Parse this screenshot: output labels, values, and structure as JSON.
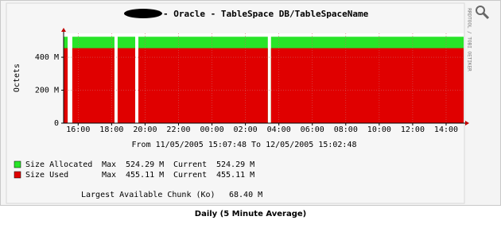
{
  "chart_data": {
    "type": "area",
    "title": "- Oracle - TableSpace DB/TableSpaceName",
    "subtitle": "From 11/05/2005 15:07:48 To 12/05/2005 15:02:48",
    "ylabel": "Octets",
    "watermark": "RRDTOOL / TOBI OETIKER",
    "caption": "Daily (5 Minute Average)",
    "x": [
      15.13,
      15.37,
      15.5,
      15.65,
      18.17,
      18.25,
      18.36,
      19.41,
      19.5,
      19.6,
      27.34,
      27.45,
      27.53,
      39.047
    ],
    "series": [
      {
        "name": "Size Allocated",
        "color": "#28e428",
        "values": [
          524290000,
          524290000,
          null,
          524290000,
          524290000,
          null,
          524290000,
          524290000,
          null,
          524290000,
          524290000,
          null,
          524290000,
          524290000
        ],
        "stats": [
          "Max",
          "524.29 M",
          "Current",
          "524.29 M"
        ]
      },
      {
        "name": "Size Used",
        "color": "#e00000",
        "values": [
          455110000,
          455110000,
          null,
          455110000,
          455110000,
          null,
          455110000,
          455110000,
          null,
          455110000,
          455110000,
          null,
          455110000,
          455110000
        ],
        "stats": [
          "Max",
          "455.11 M",
          "Current",
          "455.11 M"
        ]
      }
    ],
    "footer": [
      "Largest Available Chunk (Ko)",
      "68.40 M"
    ],
    "xlim": [
      15.13,
      39.047
    ],
    "xticks": [
      {
        "value": 16,
        "label": "16:00"
      },
      {
        "value": 18,
        "label": "18:00"
      },
      {
        "value": 20,
        "label": "20:00"
      },
      {
        "value": 22,
        "label": "22:00"
      },
      {
        "value": 24,
        "label": "00:00"
      },
      {
        "value": 26,
        "label": "02:00"
      },
      {
        "value": 28,
        "label": "04:00"
      },
      {
        "value": 30,
        "label": "06:00"
      },
      {
        "value": 32,
        "label": "08:00"
      },
      {
        "value": 34,
        "label": "10:00"
      },
      {
        "value": 36,
        "label": "12:00"
      },
      {
        "value": 38,
        "label": "14:00"
      }
    ],
    "ylim": [
      0,
      545000000
    ],
    "yticks": [
      0,
      {
        "value": 200000000,
        "label": "200 M"
      },
      {
        "value": 400000000,
        "label": "400 M"
      }
    ],
    "grid": true
  }
}
